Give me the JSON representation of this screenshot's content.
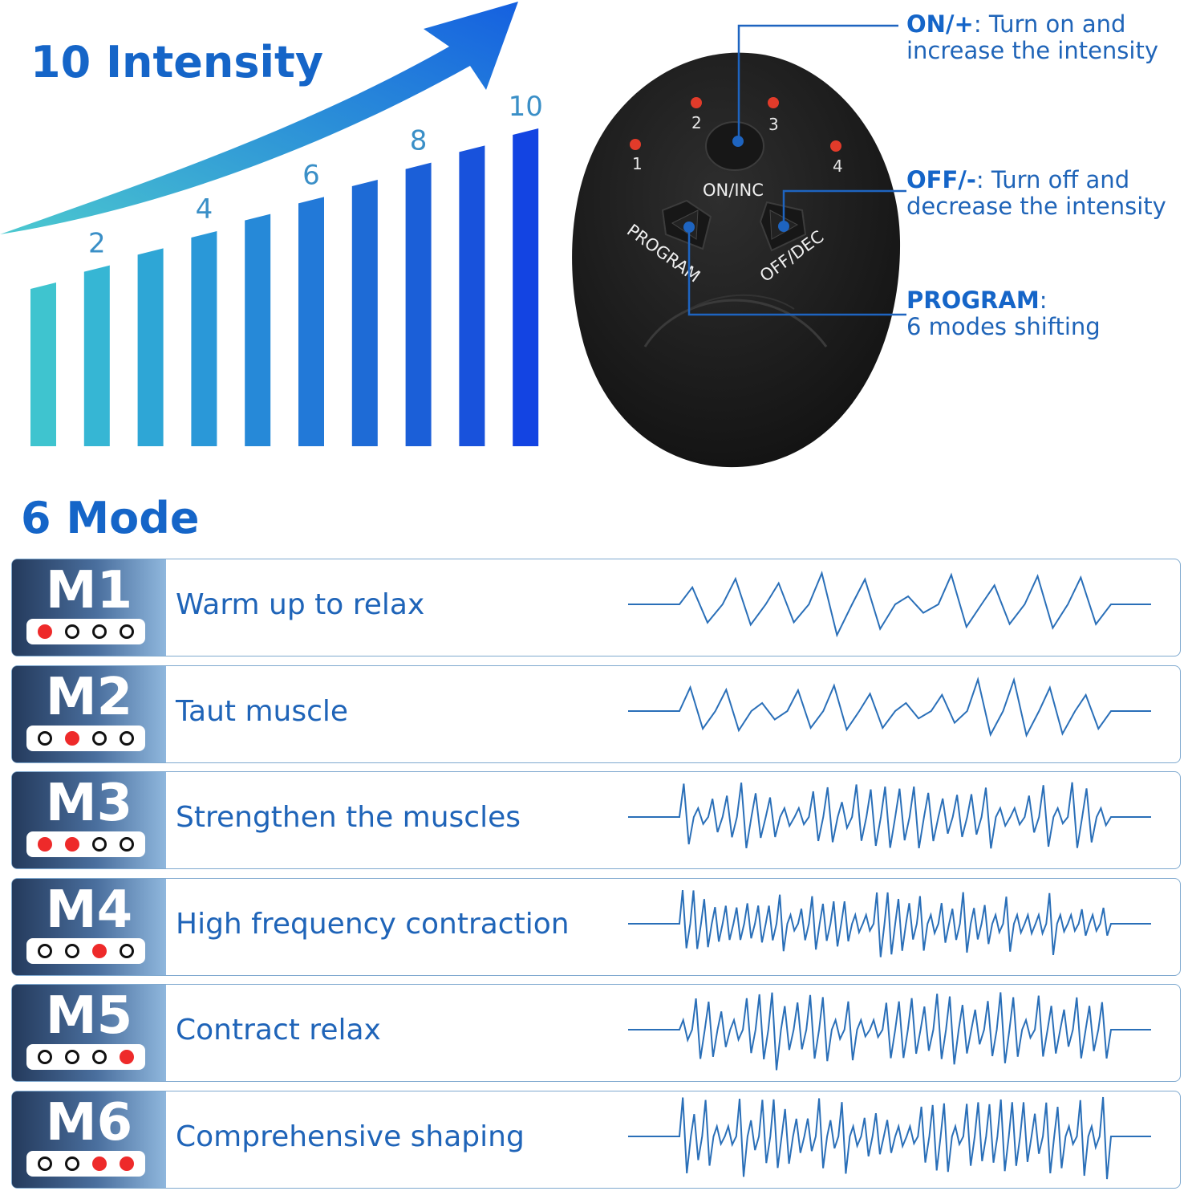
{
  "intensity": {
    "title": "10 Intensity",
    "bar_count": 10,
    "bar_labels": [
      "2",
      "4",
      "6",
      "8",
      "10"
    ],
    "bar_colors": [
      "#3fc4cf",
      "#36b6d4",
      "#2ea6d6",
      "#2a98d8",
      "#2689d8",
      "#2279d8",
      "#1e6bd6",
      "#1b5fd8",
      "#1852dc",
      "#1344e2"
    ]
  },
  "device": {
    "leds": [
      "1",
      "2",
      "3",
      "4"
    ],
    "center_button_label": "ON/INC",
    "left_button_label": "PROGRAM",
    "right_button_label": "OFF/DEC",
    "body_color": "#1c1c1c",
    "led_color": "#e23b2a"
  },
  "annotations": [
    {
      "key": "ON/+",
      "line1_rest": ": Turn on and",
      "line2": "increase the intensity"
    },
    {
      "key": "OFF/-",
      "line1_rest": ": Turn off and",
      "line2": "decrease the intensity"
    },
    {
      "key": "PROGRAM",
      "line1_rest": ":",
      "line2": "6 modes shifting"
    }
  ],
  "modes_title": "6 Mode",
  "modes": [
    {
      "code": "M1",
      "desc": "Warm up to relax",
      "dots": [
        1,
        0,
        0,
        0
      ]
    },
    {
      "code": "M2",
      "desc": "Taut muscle",
      "dots": [
        0,
        1,
        0,
        0
      ]
    },
    {
      "code": "M3",
      "desc": "Strengthen the muscles",
      "dots": [
        1,
        1,
        0,
        0
      ]
    },
    {
      "code": "M4",
      "desc": "High frequency contraction",
      "dots": [
        0,
        0,
        1,
        0
      ]
    },
    {
      "code": "M5",
      "desc": "Contract relax",
      "dots": [
        0,
        0,
        0,
        1
      ]
    },
    {
      "code": "M6",
      "desc": "Comprehensive shaping",
      "dots": [
        0,
        0,
        1,
        1
      ]
    }
  ],
  "colors": {
    "accent": "#1565c8",
    "wave": "#2a6fb8"
  }
}
